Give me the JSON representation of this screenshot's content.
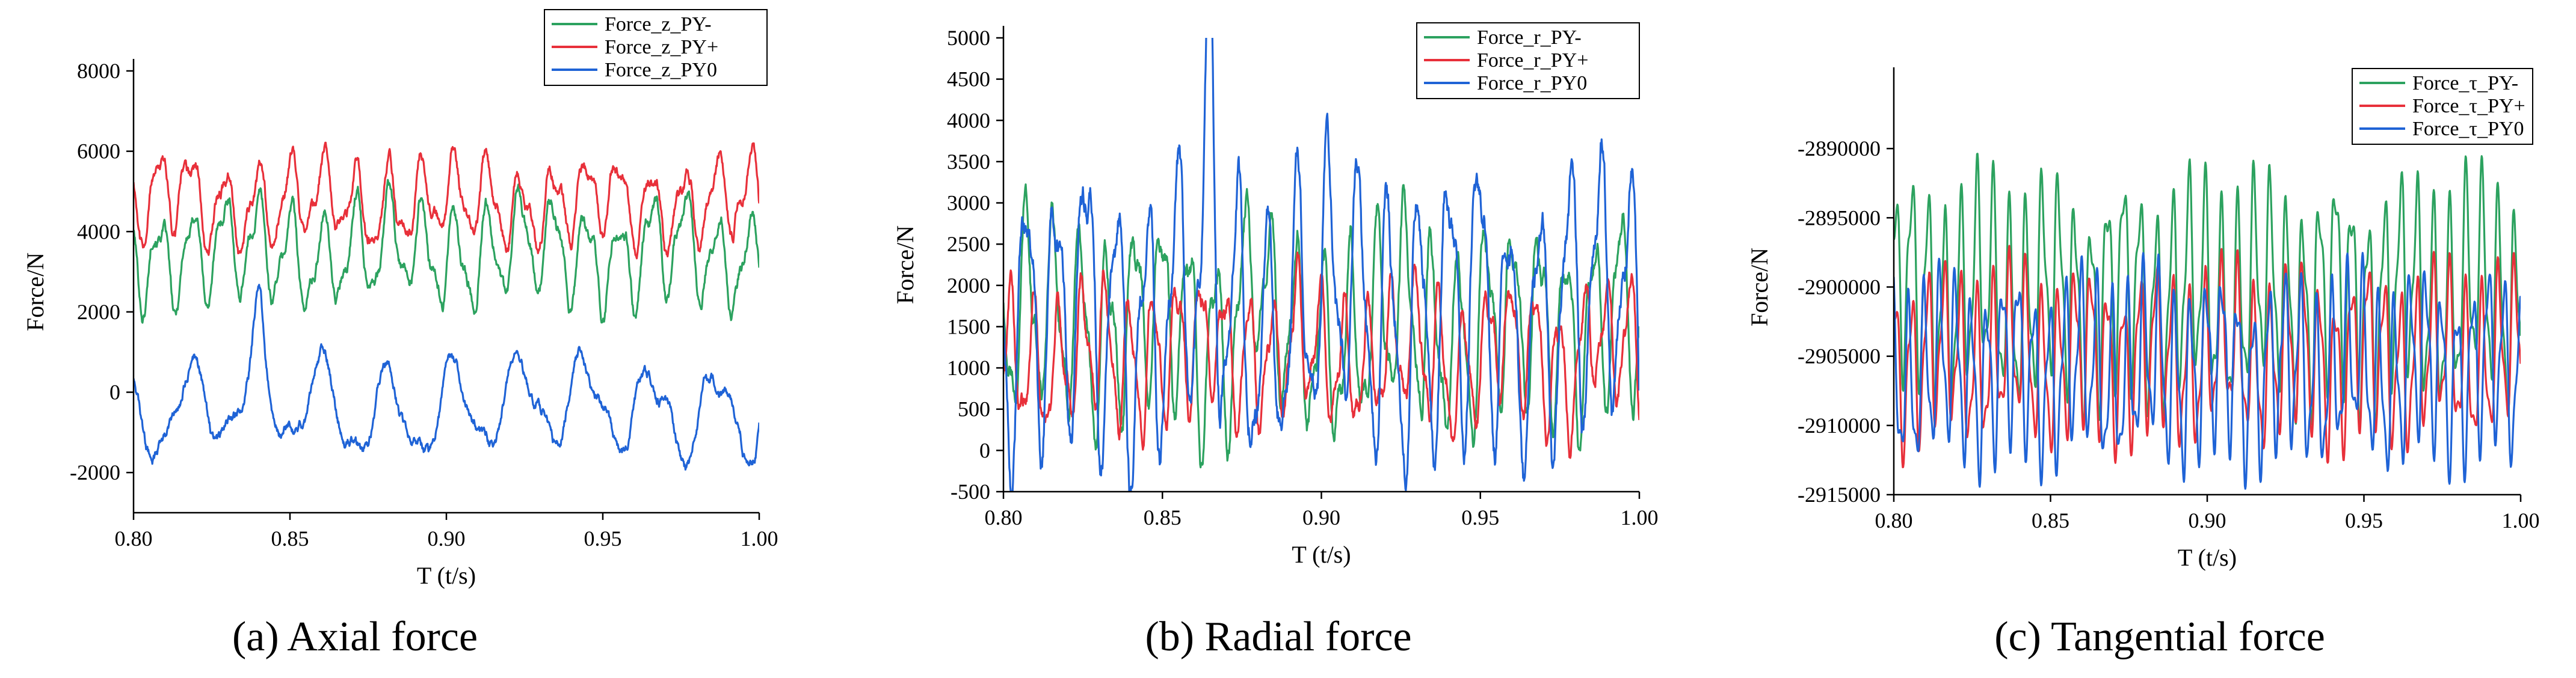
{
  "colors": {
    "PY-": "#2ca25f",
    "PY+": "#e8303a",
    "PY0": "#1f63d6",
    "axis": "#000000"
  },
  "chart_data": [
    {
      "type": "line",
      "caption": "(a) Axial force",
      "xlabel": "T (t/s)",
      "ylabel": "Force/N",
      "xlim": [
        0.8,
        1.0
      ],
      "ylim": [
        -3000,
        8000
      ],
      "xticks": [
        0.8,
        0.85,
        0.9,
        0.95,
        1.0
      ],
      "xtick_labels": [
        "0.80",
        "0.85",
        "0.90",
        "0.95",
        "1.00"
      ],
      "yticks": [
        -2000,
        0,
        2000,
        4000,
        6000,
        8000
      ],
      "ytick_labels": [
        "-2000",
        "0",
        "2000",
        "4000",
        "6000",
        "8000"
      ],
      "legend": [
        "Force_z_PY-",
        "Force_z_PY+",
        "Force_z_PY0"
      ],
      "legend_position": "top-right",
      "series": [
        {
          "name": "Force_z_PY-",
          "color_key": "PY-",
          "mean": 3500,
          "amp": 1100,
          "period": 0.0105,
          "noise": 350,
          "spike_x": 0.865,
          "spike_h": 0
        },
        {
          "name": "Force_z_PY+",
          "color_key": "PY+",
          "mean": 4700,
          "amp": 900,
          "period": 0.0105,
          "noise": 350,
          "spike_x": 0.815,
          "spike_h": 800
        },
        {
          "name": "Force_z_PY0",
          "color_key": "PY0",
          "mean": -400,
          "amp": 1000,
          "period": 0.021,
          "noise": 300,
          "spike_x": 0.84,
          "spike_h": 1400
        }
      ]
    },
    {
      "type": "line",
      "caption": "(b) Radial force",
      "xlabel": "T (t/s)",
      "ylabel": "Force/N",
      "xlim": [
        0.8,
        1.0
      ],
      "ylim": [
        -500,
        5000
      ],
      "xticks": [
        0.8,
        0.85,
        0.9,
        0.95,
        1.0
      ],
      "xtick_labels": [
        "0.80",
        "0.85",
        "0.90",
        "0.95",
        "1.00"
      ],
      "yticks": [
        -500,
        0,
        500,
        1000,
        1500,
        2000,
        2500,
        3000,
        3500,
        4000,
        4500,
        5000
      ],
      "ytick_labels": [
        "-500",
        "0",
        "500",
        "1000",
        "1500",
        "2000",
        "2500",
        "3000",
        "3500",
        "4000",
        "4500",
        "5000"
      ],
      "legend": [
        "Force_r_PY-",
        "Force_r_PY+",
        "Force_r_PY0"
      ],
      "legend_position": "top-right",
      "series": [
        {
          "name": "Force_r_PY-",
          "color_key": "PY-",
          "mean": 1500,
          "amp": 1000,
          "period": 0.0085,
          "noise": 300,
          "spike_x": 0.878,
          "spike_h": 1200
        },
        {
          "name": "Force_r_PY+",
          "color_key": "PY+",
          "mean": 1150,
          "amp": 700,
          "period": 0.0075,
          "noise": 250,
          "spike_x": 0.985,
          "spike_h": 600
        },
        {
          "name": "Force_r_PY0",
          "color_key": "PY0",
          "mean": 1700,
          "amp": 1400,
          "period": 0.0095,
          "noise": 400,
          "spike_x": 0.865,
          "spike_h": 2200
        }
      ]
    },
    {
      "type": "line",
      "caption": "(c) Tangential force",
      "xlabel": "T (t/s)",
      "ylabel": "Force/N",
      "xlim": [
        0.8,
        1.0
      ],
      "ylim": [
        -2915000,
        -2885000
      ],
      "xticks": [
        0.8,
        0.85,
        0.9,
        0.95,
        1.0
      ],
      "xtick_labels": [
        "0.80",
        "0.85",
        "0.90",
        "0.95",
        "1.00"
      ],
      "yticks": [
        -2915000,
        -2910000,
        -2905000,
        -2900000,
        -2895000,
        -2890000
      ],
      "ytick_labels": [
        "-2915000",
        "-2910000",
        "-2905000",
        "-2900000",
        "-2895000",
        "-2890000"
      ],
      "legend": [
        "Force_τ_PY-",
        "Force_τ_PY+",
        "Force_τ_PY0"
      ],
      "legend_position": "top-right",
      "series": [
        {
          "name": "Force_τ_PY-",
          "color_key": "PY-",
          "mean": -2900500,
          "amp": 6500,
          "period": 0.0052,
          "noise": 500,
          "spike_x": 0.92,
          "spike_h": 0
        },
        {
          "name": "Force_τ_PY+",
          "color_key": "PY+",
          "mean": -2905000,
          "amp": 5000,
          "period": 0.0052,
          "noise": 400,
          "spike_x": 0.92,
          "spike_h": 0
        },
        {
          "name": "Force_τ_PY0",
          "color_key": "PY0",
          "mean": -2906000,
          "amp": 5500,
          "period": 0.005,
          "noise": 500,
          "spike_x": 0.92,
          "spike_h": 0
        }
      ]
    }
  ]
}
